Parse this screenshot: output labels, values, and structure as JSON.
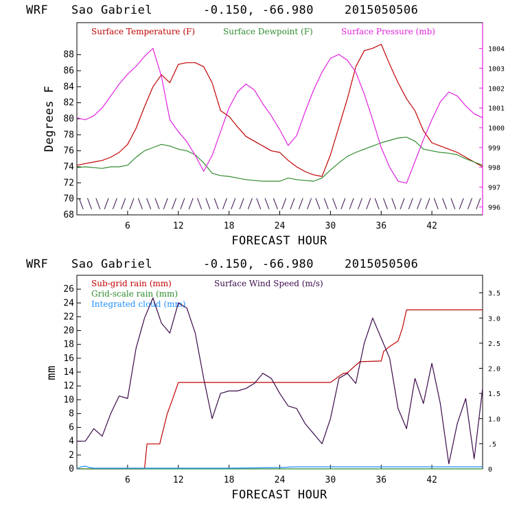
{
  "chart_data": [
    {
      "type": "line",
      "title": {
        "model": "WRF",
        "station": "Sao Gabriel",
        "coords": "-0.150, -66.980",
        "run": "2015050506"
      },
      "xlabel": "FORECAST HOUR",
      "ylabel": "Degrees F",
      "xlim": [
        0,
        48
      ],
      "ylim": [
        68,
        92
      ],
      "y2lim": [
        995.6,
        1005.3
      ],
      "xticks": [
        6,
        12,
        18,
        24,
        30,
        36,
        42
      ],
      "xtick_labels": [
        "6",
        "12",
        "18",
        "24",
        "30",
        "36",
        "42"
      ],
      "yticks": [
        68,
        70,
        72,
        74,
        76,
        78,
        80,
        82,
        84,
        86,
        88
      ],
      "ytick_labels": [
        "68",
        "70",
        "72",
        "74",
        "76",
        "78",
        "80",
        "82",
        "84",
        "86",
        "88"
      ],
      "y2ticks": [
        996,
        997,
        998,
        999,
        1000,
        1001,
        1002,
        1003,
        1004
      ],
      "y2tick_labels": [
        "996",
        "997",
        "998",
        "999",
        "1000",
        "1001",
        "1002",
        "1003",
        "1004"
      ],
      "series": [
        {
          "name": "Surface Temperature (F)",
          "color": "#c00000",
          "axis": "left",
          "x": [
            0,
            1,
            2,
            3,
            4,
            5,
            6,
            7,
            8,
            9,
            10,
            11,
            12,
            13,
            14,
            15,
            16,
            17,
            18,
            19,
            20,
            21,
            22,
            23,
            24,
            25,
            26,
            27,
            28,
            29,
            30,
            31,
            32,
            33,
            34,
            35,
            36,
            37,
            38,
            39,
            40,
            41,
            42,
            43,
            44,
            45,
            46,
            47,
            48
          ],
          "y": [
            74.2,
            74.4,
            74.6,
            74.8,
            75.2,
            75.8,
            76.8,
            78.8,
            81.5,
            84.0,
            85.5,
            84.5,
            86.8,
            87.0,
            87.0,
            86.5,
            84.5,
            81.0,
            80.3,
            79.0,
            77.8,
            77.2,
            76.6,
            76.0,
            75.8,
            74.8,
            74.0,
            73.4,
            73.0,
            72.8,
            75.5,
            79.0,
            82.5,
            86.5,
            88.5,
            88.8,
            89.3,
            86.8,
            84.5,
            82.5,
            81.0,
            78.5,
            77.0,
            76.6,
            76.2,
            75.8,
            75.2,
            74.6,
            74.0
          ]
        },
        {
          "name": "Surface Dewpoint (F)",
          "color": "#2e8b2e",
          "axis": "left",
          "x": [
            0,
            1,
            2,
            3,
            4,
            5,
            6,
            7,
            8,
            9,
            10,
            11,
            12,
            13,
            14,
            15,
            16,
            17,
            18,
            19,
            20,
            21,
            22,
            23,
            24,
            25,
            26,
            27,
            28,
            29,
            30,
            31,
            32,
            33,
            34,
            35,
            36,
            37,
            38,
            39,
            40,
            41,
            42,
            43,
            44,
            45,
            46,
            47,
            48
          ],
          "y": [
            73.9,
            74.0,
            73.9,
            73.8,
            74.0,
            74.0,
            74.2,
            75.2,
            76.0,
            76.4,
            76.8,
            76.6,
            76.2,
            76.0,
            75.5,
            74.5,
            73.2,
            72.9,
            72.8,
            72.6,
            72.4,
            72.3,
            72.2,
            72.2,
            72.2,
            72.6,
            72.4,
            72.3,
            72.2,
            72.6,
            73.6,
            74.5,
            75.3,
            75.8,
            76.2,
            76.6,
            77.0,
            77.3,
            77.6,
            77.7,
            77.2,
            76.2,
            76.0,
            75.8,
            75.7,
            75.5,
            75.0,
            74.6,
            74.2
          ]
        },
        {
          "name": "Surface Pressure (mb)",
          "color": "#e020e0",
          "axis": "right",
          "x": [
            0,
            1,
            2,
            3,
            4,
            5,
            6,
            7,
            8,
            9,
            10,
            11,
            12,
            13,
            14,
            15,
            16,
            17,
            18,
            19,
            20,
            21,
            22,
            23,
            24,
            25,
            26,
            27,
            28,
            29,
            30,
            31,
            32,
            33,
            34,
            35,
            36,
            37,
            38,
            39,
            40,
            41,
            42,
            43,
            44,
            45,
            46,
            47,
            48
          ],
          "y": [
            1000.5,
            1000.4,
            1000.6,
            1001.0,
            1001.6,
            1002.2,
            1002.7,
            1003.1,
            1003.6,
            1004.0,
            1002.6,
            1000.4,
            999.8,
            999.3,
            998.6,
            997.8,
            998.6,
            999.8,
            1001.0,
            1001.8,
            1002.2,
            1001.9,
            1001.2,
            1000.6,
            999.9,
            999.1,
            999.6,
            1000.8,
            1001.9,
            1002.8,
            1003.5,
            1003.7,
            1003.4,
            1002.8,
            1001.7,
            1000.4,
            999.0,
            998.0,
            997.3,
            997.2,
            998.3,
            999.4,
            1000.4,
            1001.3,
            1001.8,
            1001.6,
            1001.1,
            1000.7,
            1000.5
          ]
        }
      ],
      "wind_barb_hours": [
        0.5,
        1.5,
        2.5,
        3.5,
        4.5,
        5.5,
        6.5,
        7.5,
        8.5,
        9.5,
        10.5,
        11.5,
        12.5,
        13.5,
        14.5,
        15.5,
        16.5,
        17.5,
        18.5,
        19.5,
        20.5,
        21.5,
        22.5,
        23.5,
        24.5,
        25.5,
        26.5,
        27.5,
        28.5,
        29.5,
        30.5,
        31.5,
        32.5,
        33.5,
        34.5,
        35.5,
        36.5,
        37.5,
        38.5,
        39.5,
        40.5,
        41.5,
        42.5,
        43.5,
        44.5,
        45.5,
        46.5,
        47.5
      ]
    },
    {
      "type": "line",
      "title": {
        "model": "WRF",
        "station": "Sao Gabriel",
        "coords": "-0.150, -66.980",
        "run": "2015050506"
      },
      "xlabel": "FORECAST HOUR",
      "ylabel": "mm",
      "xlim": [
        0,
        48
      ],
      "ylim": [
        0,
        28
      ],
      "y2lim": [
        0,
        3.85
      ],
      "xticks": [
        6,
        12,
        18,
        24,
        30,
        36,
        42
      ],
      "xtick_labels": [
        "6",
        "12",
        "18",
        "24",
        "30",
        "36",
        "42"
      ],
      "yticks": [
        0,
        2,
        4,
        6,
        8,
        10,
        12,
        14,
        16,
        18,
        20,
        22,
        24,
        26
      ],
      "ytick_labels": [
        "0",
        "2",
        "4",
        "6",
        "8",
        "10",
        "12",
        "14",
        "16",
        "18",
        "20",
        "22",
        "24",
        "26"
      ],
      "y2ticks": [
        0,
        0.5,
        1.0,
        1.5,
        2.0,
        2.5,
        3.0,
        3.5
      ],
      "y2tick_labels": [
        "0",
        ".5",
        "1.0",
        "1.5",
        "2.0",
        "2.5",
        "3.0",
        "3.5"
      ],
      "series": [
        {
          "name": "Sub-grid rain (mm)",
          "color": "#c00000",
          "axis": "left",
          "x": [
            0,
            8.0,
            8.3,
            9.5,
            9.8,
            10.7,
            11.3,
            12.0,
            16.0,
            30.0,
            31.5,
            32.0,
            33.0,
            33.5,
            36.0,
            36.3,
            37.0,
            38.0,
            38.5,
            39.0,
            41.0,
            48.0
          ],
          "y": [
            0,
            0,
            3.6,
            3.6,
            3.6,
            8.0,
            10.0,
            12.5,
            12.5,
            12.5,
            13.8,
            13.9,
            15.0,
            15.5,
            15.6,
            17.0,
            17.7,
            18.5,
            20.3,
            23.0,
            23.0,
            23.0
          ]
        },
        {
          "name": "Grid-scale rain (mm)",
          "color": "#2e8b2e",
          "axis": "left",
          "x": [
            0,
            48
          ],
          "y": [
            0,
            0
          ]
        },
        {
          "name": "Integrated cloud (mm)",
          "color": "#1e90ff",
          "axis": "left",
          "x": [
            0,
            0.5,
            1.0,
            1.5,
            2.0,
            6,
            12,
            18,
            24,
            26,
            30,
            36,
            42,
            48
          ],
          "y": [
            0,
            0.3,
            0.4,
            0.2,
            0.1,
            0.1,
            0.1,
            0.1,
            0.2,
            0.3,
            0.3,
            0.3,
            0.3,
            0.3
          ]
        },
        {
          "name": "Surface Wind Speed (m/s)",
          "color": "#3a0a4a",
          "axis": "right",
          "x": [
            0,
            1,
            2,
            3,
            4,
            5,
            6,
            7,
            8,
            9,
            10,
            11,
            12,
            13,
            14,
            15,
            16,
            17,
            18,
            19,
            20,
            21,
            22,
            23,
            24,
            25,
            26,
            27,
            28,
            29,
            30,
            31,
            32,
            33,
            34,
            35,
            36,
            37,
            38,
            39,
            40,
            41,
            42,
            43,
            44,
            45,
            46,
            47,
            48
          ],
          "y": [
            0.55,
            0.55,
            0.8,
            0.65,
            1.1,
            1.45,
            1.4,
            2.4,
            3.0,
            3.4,
            2.9,
            2.7,
            3.3,
            3.2,
            2.7,
            1.8,
            1.0,
            1.5,
            1.55,
            1.55,
            1.6,
            1.7,
            1.9,
            1.8,
            1.5,
            1.25,
            1.2,
            0.9,
            0.7,
            0.5,
            1.0,
            1.8,
            1.9,
            1.7,
            2.5,
            3.0,
            2.6,
            2.2,
            1.2,
            0.8,
            1.8,
            1.3,
            2.1,
            1.3,
            0.1,
            0.9,
            1.4,
            0.2,
            1.6
          ]
        }
      ]
    }
  ]
}
